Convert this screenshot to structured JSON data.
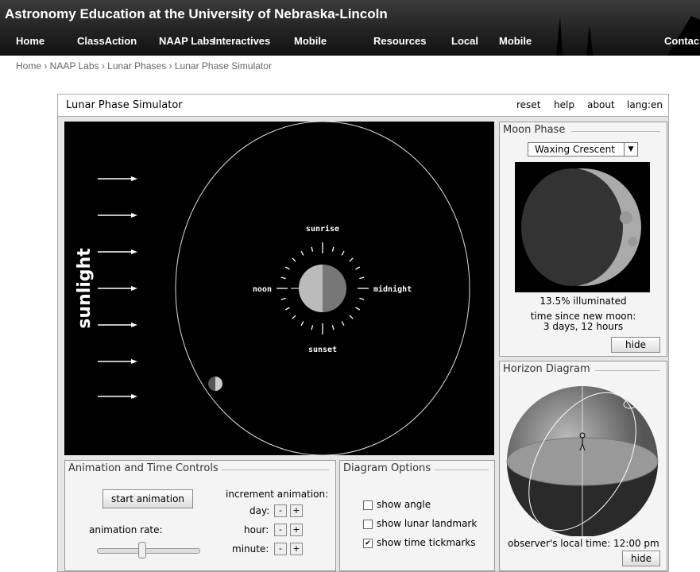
{
  "header": {
    "title": "Astronomy Education at the University of Nebraska-Lincoln",
    "nav": [
      "Home",
      "ClassAction",
      "NAAP Labs",
      "Interactives",
      "Mobile",
      "Resources",
      "Local",
      "Mobile",
      "Contac"
    ]
  },
  "breadcrumb": "Home › NAAP Labs › Lunar Phases › Lunar Phase Simulator",
  "app": {
    "title": "Lunar Phase Simulator",
    "menu": [
      "reset",
      "help",
      "about",
      "lang:en"
    ]
  },
  "simulator": {
    "sunlight": "sunlight",
    "sunrise": "sunrise",
    "noon": "noon",
    "midnight": "midnight",
    "sunset": "sunset"
  },
  "moon_phase": {
    "title": "Moon Phase",
    "phase": "Waxing Crescent",
    "illuminated": "13.5% illuminated",
    "time_label": "time since new moon:",
    "time_value": "3 days, 12 hours",
    "hide": "hide"
  },
  "horizon": {
    "title": "Horizon Diagram",
    "time_label": "observer's local time:",
    "time_value": "12:00 pm",
    "hide": "hide"
  },
  "animation": {
    "title": "Animation and Time Controls",
    "start": "start animation",
    "rate": "animation rate:",
    "increment": "increment animation:",
    "units": [
      "day:",
      "hour:",
      "minute:"
    ],
    "minus": "-",
    "plus": "+"
  },
  "diagram_options": {
    "title": "Diagram Options",
    "options": [
      {
        "label": "show angle",
        "checked": false
      },
      {
        "label": "show lunar landmark",
        "checked": false
      },
      {
        "label": "show time tickmarks",
        "checked": true
      }
    ]
  }
}
